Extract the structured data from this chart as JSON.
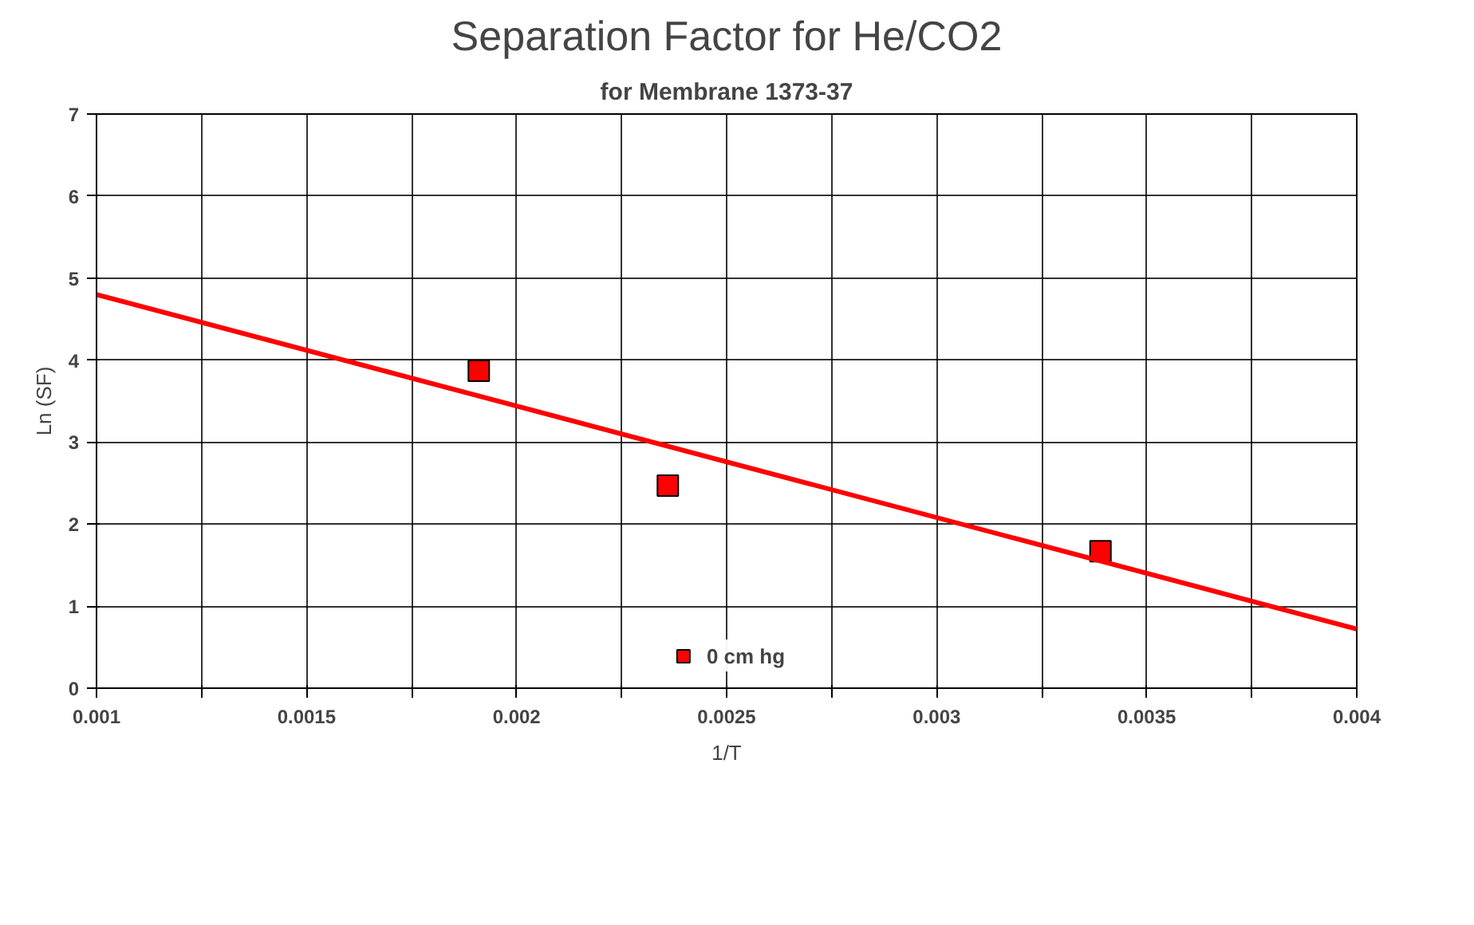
{
  "chart_data": {
    "type": "scatter",
    "title": "Separation Factor for He/CO2",
    "subtitle": "for Membrane 1373-37",
    "xlabel": "1/T",
    "ylabel": "Ln (SF)",
    "series": [
      {
        "name": "0 cm hg",
        "color": "#ff0000",
        "marker": "square",
        "x": [
          0.00191,
          0.00236,
          0.00339
        ],
        "values": [
          3.87,
          2.47,
          1.67
        ]
      },
      {
        "color": "#ff0000",
        "type": "line",
        "x": [
          0.001,
          0.004
        ],
        "values": [
          4.8,
          0.72
        ]
      }
    ],
    "xlim": [
      0.001,
      0.004
    ],
    "ylim": [
      0,
      7
    ],
    "xticks": [
      0.001,
      {
        "value": 0.00125,
        "label": null
      },
      0.0015,
      {
        "value": 0.00175,
        "label": null
      },
      0.002,
      {
        "value": 0.00225,
        "label": null
      },
      0.0025,
      {
        "value": 0.00275,
        "label": null
      },
      0.003,
      {
        "value": 0.00325,
        "label": null
      },
      0.0035,
      {
        "value": 0.00375,
        "label": null
      },
      0.004
    ],
    "yticks": [
      0,
      1,
      2,
      3,
      4,
      5,
      6,
      7
    ],
    "grid": true,
    "legend": "bottom"
  }
}
